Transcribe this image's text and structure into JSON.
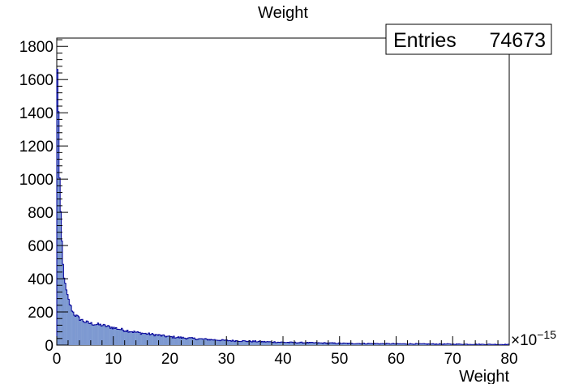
{
  "chart_data": {
    "type": "bar",
    "title": "Weight",
    "xlabel": "Weight",
    "ylabel": "",
    "x_scale_label": "×10",
    "x_scale_exponent": "−15",
    "xlim": [
      0,
      80
    ],
    "ylim": [
      0,
      1850
    ],
    "x_ticks": [
      0,
      10,
      20,
      30,
      40,
      50,
      60,
      70,
      80
    ],
    "y_ticks": [
      0,
      200,
      400,
      600,
      800,
      1000,
      1200,
      1400,
      1600,
      1800
    ],
    "grid": false,
    "legend": "none",
    "stats_box": {
      "label": "Entries",
      "value": "74673",
      "placement": "top-right"
    },
    "fill_color": "#7d99d1",
    "line_color": "#000099",
    "bins": 400,
    "bin_width": 0.2,
    "profile": {
      "x": [
        0.1,
        0.3,
        0.5,
        0.7,
        0.9,
        1.1,
        1.5,
        2,
        2.5,
        3,
        4,
        5,
        6,
        8,
        10,
        12,
        15,
        18,
        20,
        25,
        30,
        35,
        40,
        50,
        60,
        70,
        80
      ],
      "y": [
        1650,
        1420,
        1000,
        780,
        620,
        480,
        360,
        280,
        230,
        190,
        160,
        140,
        130,
        120,
        105,
        90,
        72,
        60,
        50,
        38,
        28,
        22,
        17,
        11,
        8,
        6,
        4
      ]
    }
  }
}
